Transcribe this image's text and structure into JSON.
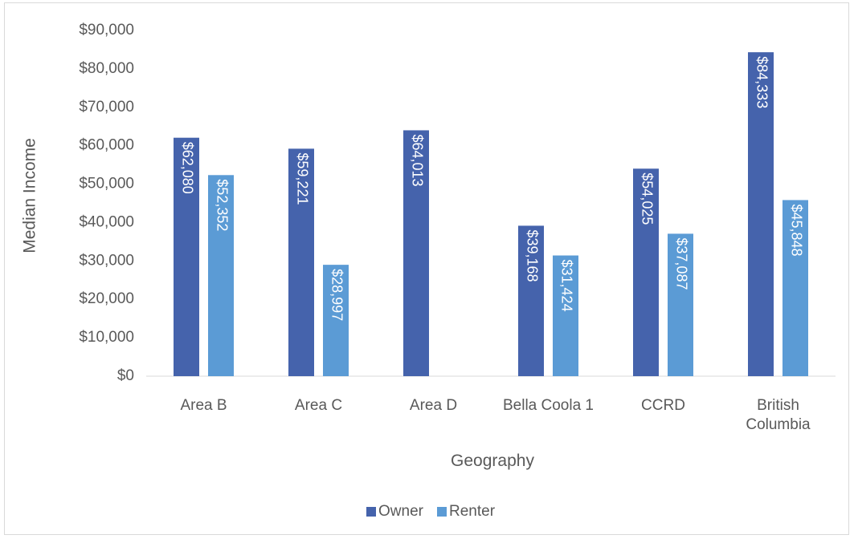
{
  "chart_data": {
    "type": "bar",
    "title": "",
    "xlabel": "Geography",
    "ylabel": "Median Income",
    "categories": [
      "Area B",
      "Area C",
      "Area D",
      "Bella Coola 1",
      "CCRD",
      "British Columbia"
    ],
    "category_lines": [
      [
        "Area B"
      ],
      [
        "Area C"
      ],
      [
        "Area D"
      ],
      [
        "Bella Coola 1"
      ],
      [
        "CCRD"
      ],
      [
        "British",
        "Columbia"
      ]
    ],
    "series": [
      {
        "name": "Owner",
        "color": "#4563ac",
        "values": [
          62080,
          59221,
          64013,
          39168,
          54025,
          84333
        ],
        "labels": [
          "$62,080",
          "$59,221",
          "$64,013",
          "$39,168",
          "$54,025",
          "$84,333"
        ]
      },
      {
        "name": "Renter",
        "color": "#5b9bd5",
        "values": [
          52352,
          28997,
          null,
          31424,
          37087,
          45848
        ],
        "labels": [
          "$52,352",
          "$28,997",
          "",
          "$31,424",
          "$37,087",
          "$45,848"
        ]
      }
    ],
    "ylim": [
      0,
      90000
    ],
    "yticks": [
      0,
      10000,
      20000,
      30000,
      40000,
      50000,
      60000,
      70000,
      80000,
      90000
    ],
    "ytick_labels": [
      "$0",
      "$10,000",
      "$20,000",
      "$30,000",
      "$40,000",
      "$50,000",
      "$60,000",
      "$70,000",
      "$80,000",
      "$90,000"
    ],
    "grid": false,
    "legend": "bottom",
    "data_labels": "rotated-inside-end"
  }
}
